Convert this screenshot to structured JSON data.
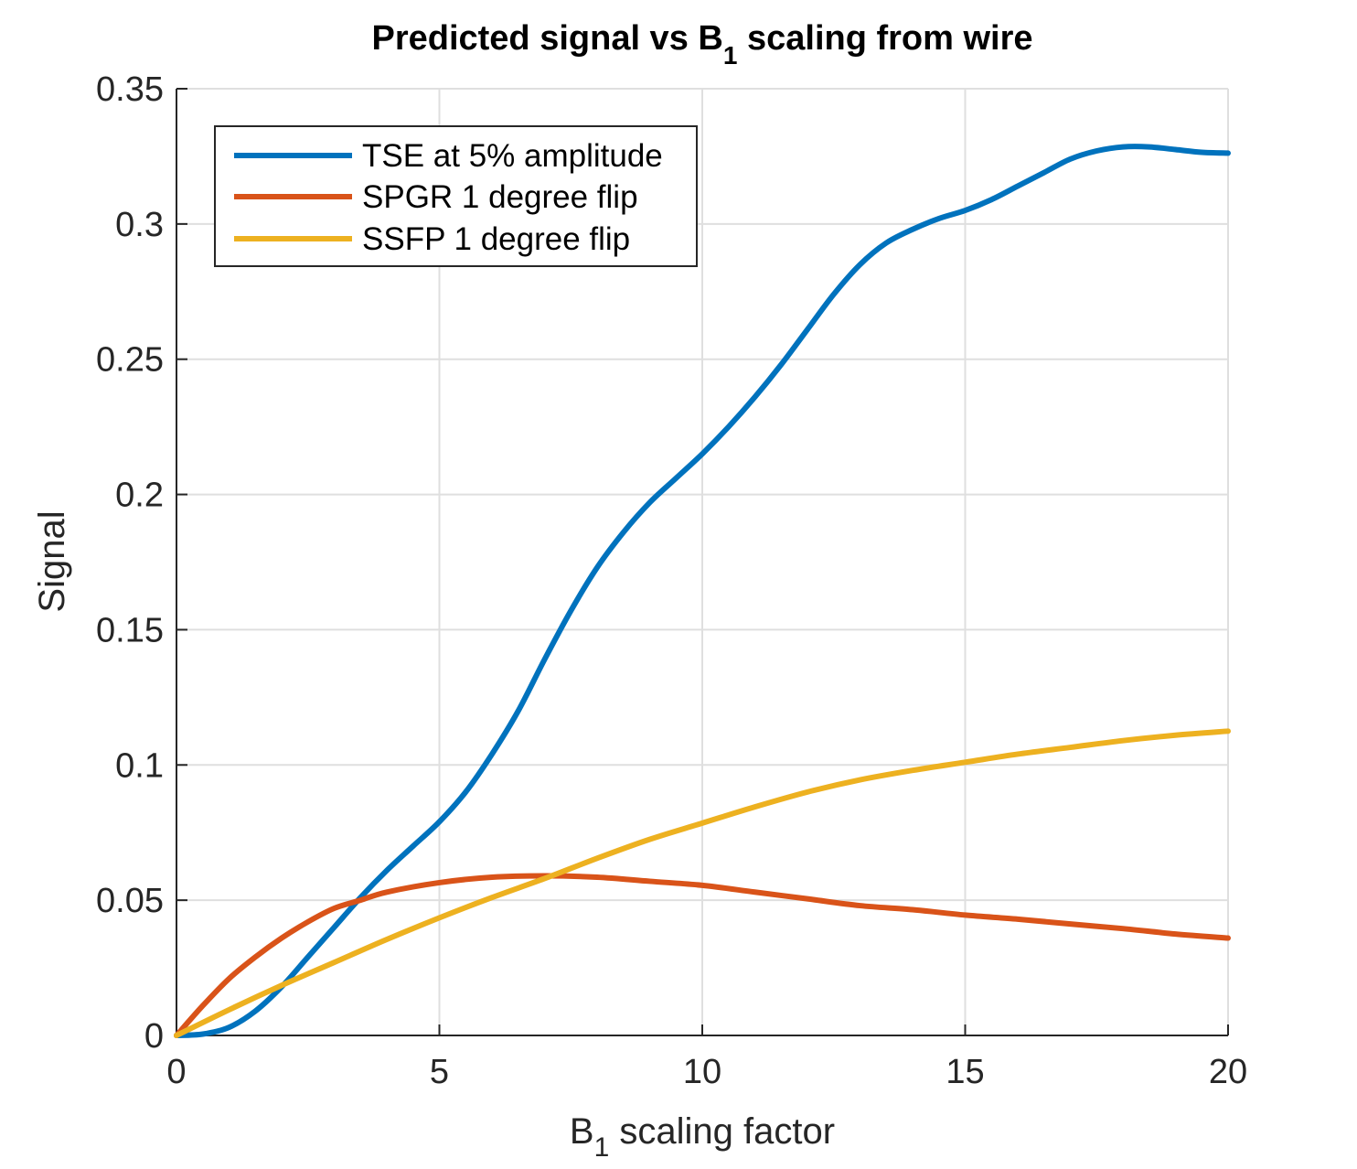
{
  "chart_data": {
    "type": "line",
    "title": "Predicted signal vs B",
    "title_sub": "1",
    "title_suffix": " scaling from wire",
    "xlabel": "B",
    "xlabel_sub": "1",
    "xlabel_suffix": " scaling factor",
    "ylabel": "Signal",
    "xlim": [
      0,
      20
    ],
    "ylim": [
      0,
      0.35
    ],
    "xticks": [
      0,
      5,
      10,
      15,
      20
    ],
    "xtick_labels": [
      "0",
      "5",
      "10",
      "15",
      "20"
    ],
    "yticks": [
      0,
      0.05,
      0.1,
      0.15,
      0.2,
      0.25,
      0.3,
      0.35
    ],
    "ytick_labels": [
      "0",
      "0.05",
      "0.1",
      "0.15",
      "0.2",
      "0.25",
      "0.3",
      "0.35"
    ],
    "grid": true,
    "legend_position": "top-left",
    "series": [
      {
        "name": "TSE at 5% amplitude",
        "color": "#0072BD",
        "x": [
          0,
          0.5,
          1,
          1.5,
          2,
          2.5,
          3,
          3.5,
          4,
          4.5,
          5,
          5.5,
          6,
          6.5,
          7,
          7.5,
          8,
          8.5,
          9,
          9.5,
          10,
          10.5,
          11,
          11.5,
          12,
          12.5,
          13,
          13.5,
          14,
          14.5,
          15,
          15.5,
          16,
          16.5,
          17,
          17.5,
          18,
          18.5,
          19,
          19.5,
          20
        ],
        "y": [
          0,
          0.0005,
          0.003,
          0.009,
          0.018,
          0.029,
          0.04,
          0.051,
          0.061,
          0.07,
          0.079,
          0.09,
          0.104,
          0.12,
          0.139,
          0.157,
          0.173,
          0.186,
          0.197,
          0.206,
          0.215,
          0.225,
          0.236,
          0.248,
          0.261,
          0.274,
          0.285,
          0.293,
          0.298,
          0.302,
          0.305,
          0.309,
          0.314,
          0.319,
          0.324,
          0.327,
          0.3285,
          0.3285,
          0.3275,
          0.3265,
          0.3262
        ]
      },
      {
        "name": "SPGR 1 degree flip",
        "color": "#D95319",
        "x": [
          0,
          0.5,
          1,
          1.5,
          2,
          2.5,
          3,
          3.5,
          4,
          5,
          6,
          7,
          8,
          9,
          10,
          11,
          12,
          13,
          14,
          15,
          16,
          17,
          18,
          19,
          20
        ],
        "y": [
          0,
          0.011,
          0.021,
          0.029,
          0.036,
          0.042,
          0.047,
          0.05,
          0.053,
          0.0565,
          0.0585,
          0.059,
          0.0585,
          0.057,
          0.0555,
          0.053,
          0.0505,
          0.048,
          0.0465,
          0.0445,
          0.043,
          0.0412,
          0.0395,
          0.0375,
          0.036
        ]
      },
      {
        "name": "SSFP 1 degree flip",
        "color": "#EDB120",
        "x": [
          0,
          1,
          2,
          3,
          4,
          5,
          6,
          7,
          8,
          9,
          10,
          11,
          12,
          13,
          14,
          15,
          16,
          17,
          18,
          19,
          20
        ],
        "y": [
          0,
          0.0095,
          0.0185,
          0.027,
          0.0355,
          0.0435,
          0.051,
          0.058,
          0.0655,
          0.0725,
          0.0785,
          0.0845,
          0.09,
          0.0945,
          0.098,
          0.101,
          0.104,
          0.1065,
          0.109,
          0.111,
          0.1125
        ]
      }
    ]
  }
}
